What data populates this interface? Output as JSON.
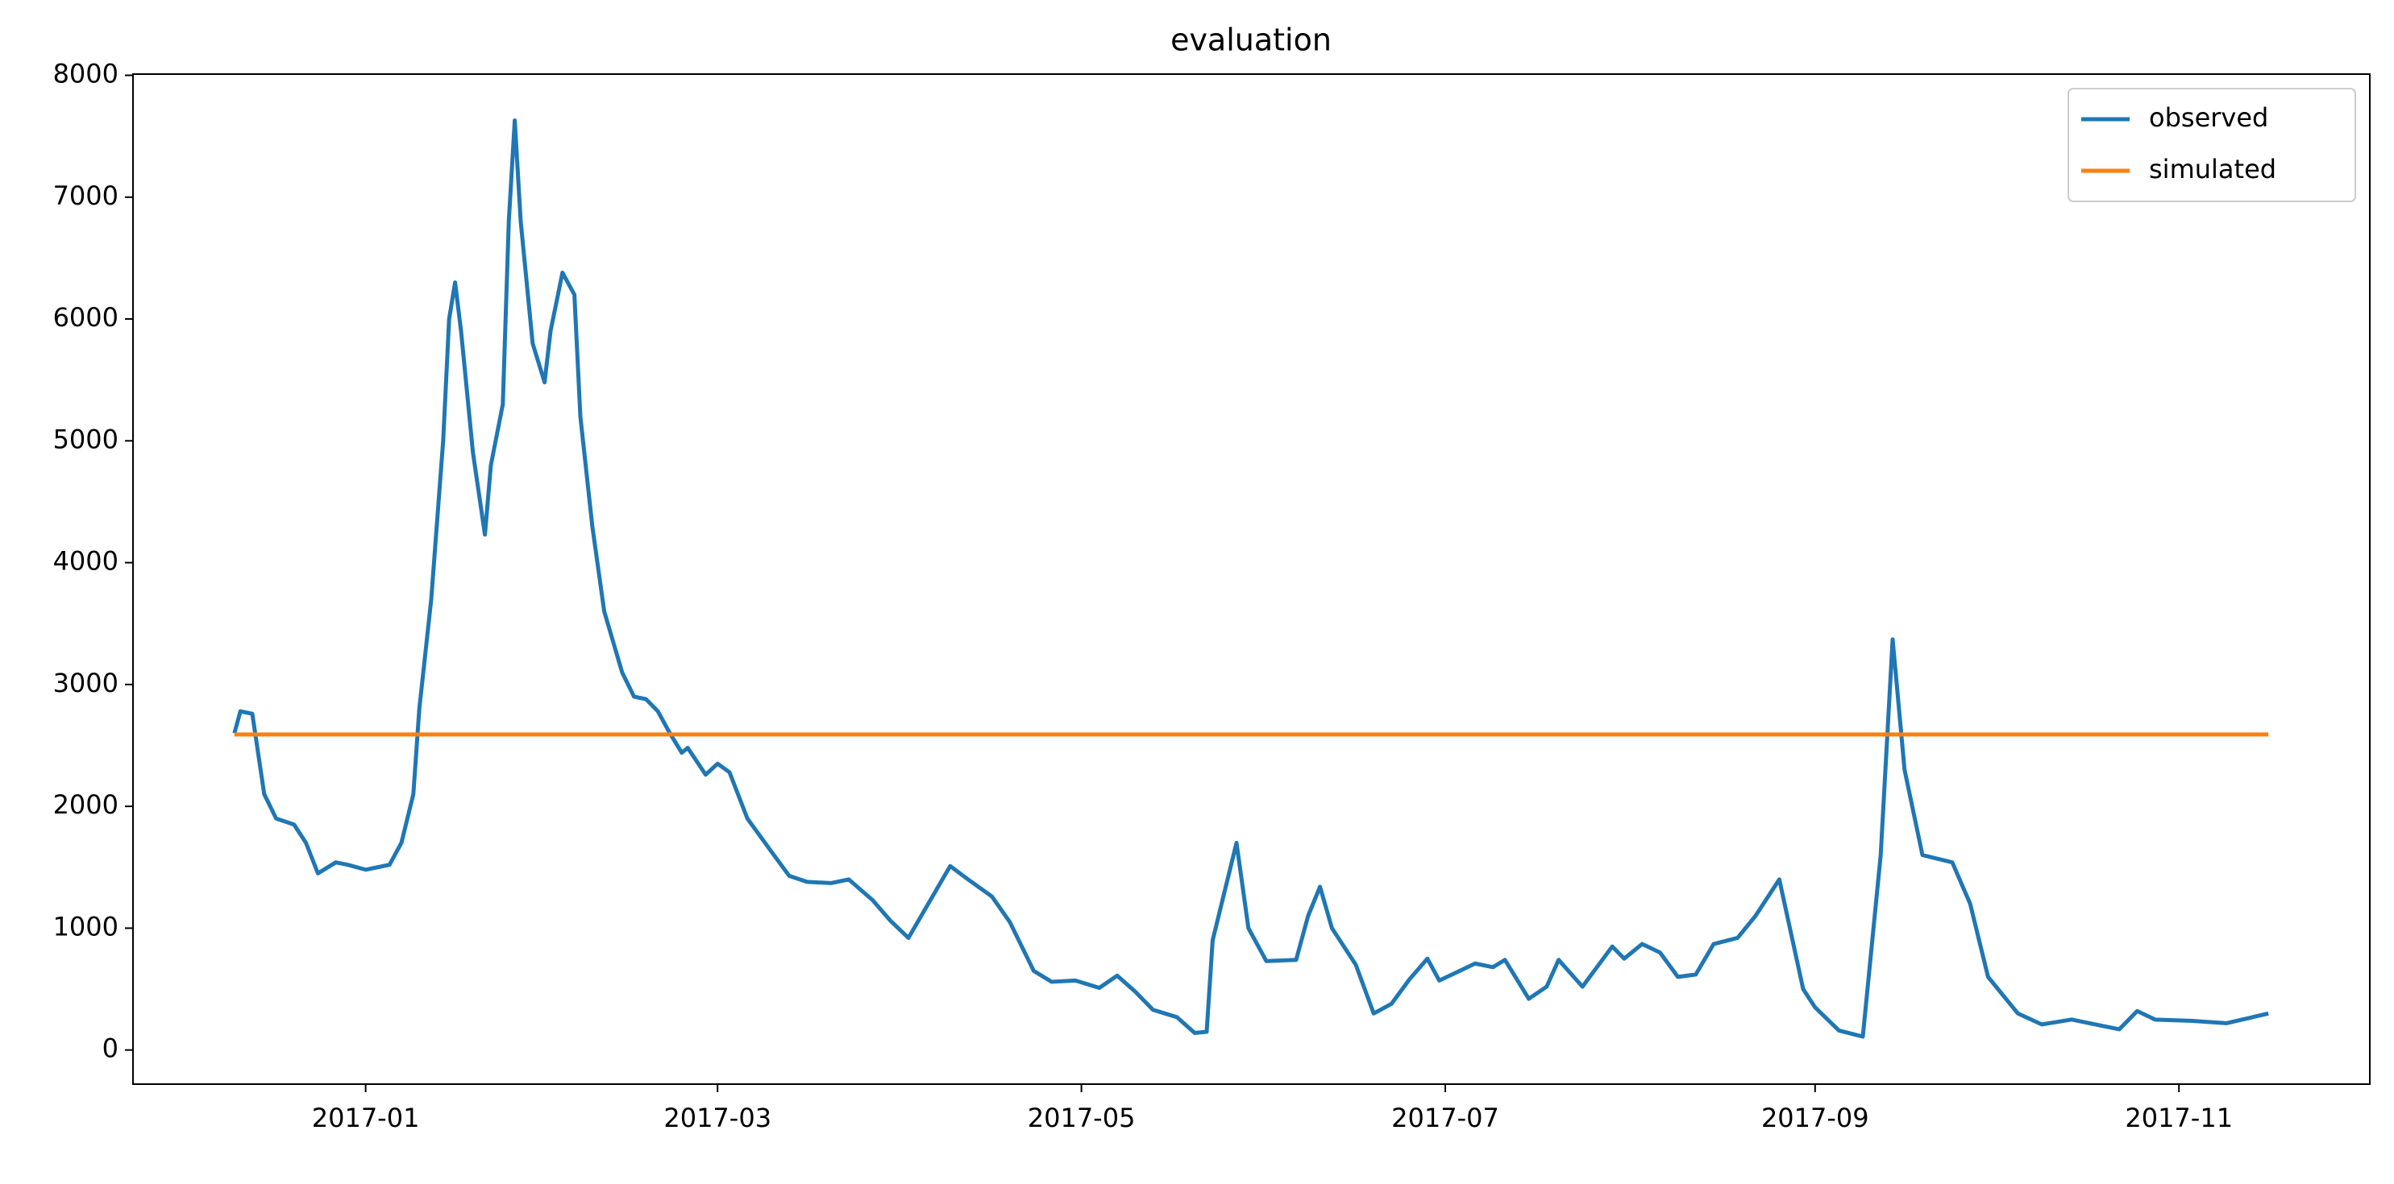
{
  "chart_data": {
    "type": "line",
    "title": "evaluation",
    "series": [
      {
        "name": "observed",
        "color": "#1f77b4",
        "x": [
          "2016-12-10",
          "2016-12-11",
          "2016-12-13",
          "2016-12-15",
          "2016-12-17",
          "2016-12-20",
          "2016-12-22",
          "2016-12-24",
          "2016-12-27",
          "2016-12-29",
          "2017-01-01",
          "2017-01-03",
          "2017-01-05",
          "2017-01-07",
          "2017-01-09",
          "2017-01-10",
          "2017-01-12",
          "2017-01-14",
          "2017-01-15",
          "2017-01-16",
          "2017-01-17",
          "2017-01-19",
          "2017-01-21",
          "2017-01-22",
          "2017-01-24",
          "2017-01-25",
          "2017-01-26",
          "2017-01-27",
          "2017-01-29",
          "2017-01-31",
          "2017-02-01",
          "2017-02-03",
          "2017-02-05",
          "2017-02-06",
          "2017-02-08",
          "2017-02-10",
          "2017-02-13",
          "2017-02-15",
          "2017-02-17",
          "2017-02-19",
          "2017-02-21",
          "2017-02-23",
          "2017-02-24",
          "2017-02-27",
          "2017-03-01",
          "2017-03-03",
          "2017-03-06",
          "2017-03-10",
          "2017-03-13",
          "2017-03-16",
          "2017-03-20",
          "2017-03-23",
          "2017-03-27",
          "2017-03-30",
          "2017-04-02",
          "2017-04-09",
          "2017-04-12",
          "2017-04-16",
          "2017-04-19",
          "2017-04-23",
          "2017-04-26",
          "2017-04-30",
          "2017-05-04",
          "2017-05-07",
          "2017-05-10",
          "2017-05-13",
          "2017-05-17",
          "2017-05-20",
          "2017-05-22",
          "2017-05-23",
          "2017-05-27",
          "2017-05-29",
          "2017-06-01",
          "2017-06-06",
          "2017-06-08",
          "2017-06-10",
          "2017-06-12",
          "2017-06-16",
          "2017-06-19",
          "2017-06-22",
          "2017-06-25",
          "2017-06-28",
          "2017-06-30",
          "2017-07-03",
          "2017-07-06",
          "2017-07-09",
          "2017-07-11",
          "2017-07-15",
          "2017-07-18",
          "2017-07-20",
          "2017-07-24",
          "2017-07-29",
          "2017-07-31",
          "2017-08-03",
          "2017-08-06",
          "2017-08-09",
          "2017-08-12",
          "2017-08-15",
          "2017-08-19",
          "2017-08-22",
          "2017-08-26",
          "2017-08-30",
          "2017-09-01",
          "2017-09-05",
          "2017-09-09",
          "2017-09-12",
          "2017-09-14",
          "2017-09-16",
          "2017-09-19",
          "2017-09-24",
          "2017-09-27",
          "2017-09-30",
          "2017-10-05",
          "2017-10-09",
          "2017-10-14",
          "2017-10-19",
          "2017-10-22",
          "2017-10-25",
          "2017-10-28",
          "2017-11-03",
          "2017-11-09",
          "2017-11-16"
        ],
        "values": [
          2600,
          2780,
          2760,
          2100,
          1900,
          1850,
          1700,
          1450,
          1540,
          1520,
          1480,
          1500,
          1520,
          1700,
          2100,
          2800,
          3700,
          5000,
          6000,
          6300,
          5900,
          4900,
          4230,
          4800,
          5300,
          6800,
          7630,
          6800,
          5800,
          5480,
          5900,
          6380,
          6200,
          5200,
          4300,
          3600,
          3100,
          2900,
          2880,
          2780,
          2600,
          2440,
          2480,
          2260,
          2350,
          2280,
          1900,
          1630,
          1430,
          1380,
          1370,
          1400,
          1230,
          1060,
          920,
          1510,
          1400,
          1260,
          1050,
          650,
          560,
          570,
          510,
          610,
          480,
          330,
          270,
          140,
          150,
          900,
          1700,
          1000,
          730,
          740,
          1100,
          1340,
          1000,
          700,
          300,
          380,
          580,
          750,
          570,
          640,
          710,
          680,
          740,
          420,
          520,
          740,
          520,
          850,
          750,
          870,
          800,
          600,
          620,
          870,
          920,
          1100,
          1400,
          500,
          350,
          160,
          110,
          1600,
          3370,
          2300,
          1600,
          1540,
          1200,
          600,
          300,
          210,
          250,
          200,
          170,
          320,
          250,
          240,
          220,
          300
        ]
      },
      {
        "name": "simulated",
        "color": "#ff7f0e",
        "x": [
          "2016-12-10",
          "2017-11-16"
        ],
        "values": [
          2590,
          2590
        ]
      }
    ],
    "xlim": [
      "2016-11-23",
      "2017-12-03"
    ],
    "xticks": [
      {
        "value": "2017-01-01",
        "label": "2017-01"
      },
      {
        "value": "2017-03-01",
        "label": "2017-03"
      },
      {
        "value": "2017-05-01",
        "label": "2017-05"
      },
      {
        "value": "2017-07-01",
        "label": "2017-07"
      },
      {
        "value": "2017-09-01",
        "label": "2017-09"
      },
      {
        "value": "2017-11-01",
        "label": "2017-11"
      }
    ],
    "ylim": [
      -280,
      8010
    ],
    "yticks": [
      0,
      1000,
      2000,
      3000,
      4000,
      5000,
      6000,
      7000,
      8000
    ],
    "legend": "upper right",
    "grid": false
  }
}
